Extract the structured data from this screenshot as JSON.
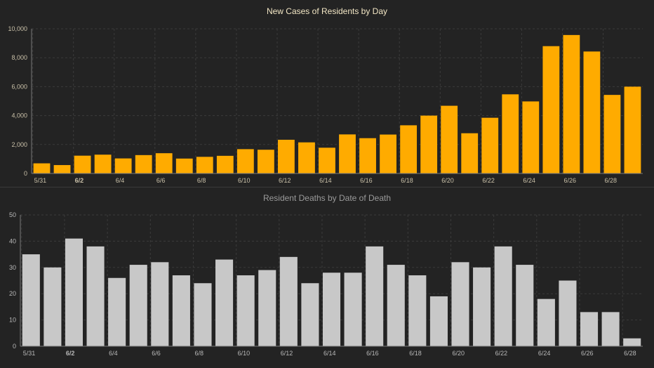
{
  "chart_data": [
    {
      "type": "bar",
      "title": "New Cases of Residents by Day",
      "xlabel": "",
      "ylabel": "",
      "categories": [
        "5/31",
        "6/1",
        "6/2",
        "6/3",
        "6/4",
        "6/5",
        "6/6",
        "6/7",
        "6/8",
        "6/9",
        "6/10",
        "6/11",
        "6/12",
        "6/13",
        "6/14",
        "6/15",
        "6/16",
        "6/17",
        "6/18",
        "6/19",
        "6/20",
        "6/21",
        "6/22",
        "6/23",
        "6/24",
        "6/25",
        "6/26",
        "6/27",
        "6/28",
        "6/29"
      ],
      "x_tick_labels": [
        "5/31",
        "6/2",
        "6/4",
        "6/6",
        "6/8",
        "6/10",
        "6/12",
        "6/14",
        "6/16",
        "6/18",
        "6/20",
        "6/22",
        "6/24",
        "6/26",
        "6/28"
      ],
      "values": [
        700,
        580,
        1230,
        1300,
        1040,
        1270,
        1400,
        1030,
        1150,
        1220,
        1680,
        1640,
        2330,
        2150,
        1780,
        2700,
        2440,
        2690,
        3330,
        4000,
        4680,
        2780,
        3850,
        5470,
        4980,
        8800,
        9570,
        8430,
        5430,
        6000
      ],
      "y_ticks": [
        0,
        2000,
        4000,
        6000,
        8000,
        10000
      ],
      "y_tick_labels": [
        "0",
        "2,000",
        "4,000",
        "6,000",
        "8,000",
        "10,000"
      ],
      "ylim": [
        0,
        10000
      ],
      "grid": true,
      "bar_color": "#FFAB00"
    },
    {
      "type": "bar",
      "title": "Resident Deaths by Date of Death",
      "xlabel": "",
      "ylabel": "",
      "categories": [
        "5/31",
        "6/1",
        "6/2",
        "6/3",
        "6/4",
        "6/5",
        "6/6",
        "6/7",
        "6/8",
        "6/9",
        "6/10",
        "6/11",
        "6/12",
        "6/13",
        "6/14",
        "6/15",
        "6/16",
        "6/17",
        "6/18",
        "6/19",
        "6/20",
        "6/21",
        "6/22",
        "6/23",
        "6/24",
        "6/25",
        "6/26",
        "6/27",
        "6/28"
      ],
      "x_tick_labels": [
        "5/31",
        "6/2",
        "6/4",
        "6/6",
        "6/8",
        "6/10",
        "6/12",
        "6/14",
        "6/16",
        "6/18",
        "6/20",
        "6/22",
        "6/24",
        "6/26",
        "6/28"
      ],
      "values": [
        35,
        30,
        41,
        38,
        26,
        31,
        32,
        27,
        24,
        33,
        27,
        29,
        34,
        24,
        28,
        28,
        38,
        31,
        27,
        19,
        32,
        30,
        38,
        31,
        18,
        25,
        13,
        13,
        3
      ],
      "y_ticks": [
        0,
        10,
        20,
        30,
        40,
        50
      ],
      "y_tick_labels": [
        "0",
        "10",
        "20",
        "30",
        "40",
        "50"
      ],
      "ylim": [
        0,
        50
      ],
      "grid": true,
      "bar_color": "#C8C8C8"
    }
  ],
  "colors": {
    "background": "#232323",
    "grid": "#3b3b3b",
    "axis": "#7a7a7a",
    "tick_text_top": "#c9c0a8",
    "tick_text_bottom": "#b8b8b8"
  }
}
